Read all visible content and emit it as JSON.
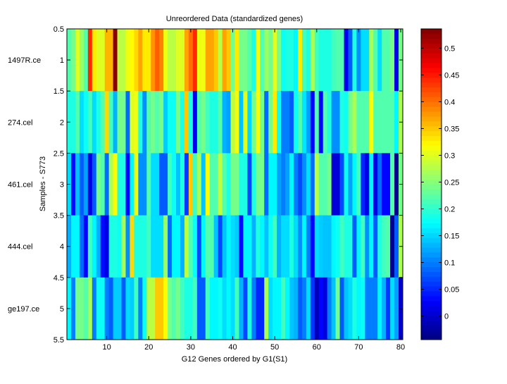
{
  "chart_data": {
    "type": "heatmap",
    "title": "Unreordered Data (standardized genes)",
    "xlabel": "G12 Genes ordered by G1(S1)",
    "ylabel": "Samples - S773",
    "row_labels": [
      "1497R.ce",
      "274.cel",
      "461.cel",
      "444.cel",
      "ge197.ce"
    ],
    "xlim": [
      0.5,
      80.5
    ],
    "ylim": [
      0.5,
      5.5
    ],
    "x_ticks": [
      10,
      20,
      30,
      40,
      50,
      60,
      70,
      80
    ],
    "y_ticks": [
      "0.5",
      "1",
      "1.5",
      "2",
      "2.5",
      "3",
      "3.5",
      "4",
      "4.5",
      "5",
      "5.5"
    ],
    "colormap": "jet",
    "clim": [
      -0.044,
      0.536
    ],
    "colorbar_ticks": [
      "0",
      "0.05",
      "0.1",
      "0.15",
      "0.2",
      "0.25",
      "0.3",
      "0.35",
      "0.4",
      "0.45",
      "0.5"
    ],
    "values": [
      [
        0.22,
        0.24,
        0.3,
        0.26,
        0.22,
        0.44,
        0.33,
        0.3,
        0.3,
        0.36,
        0.36,
        0.53,
        0.28,
        0.28,
        0.31,
        0.32,
        0.34,
        0.37,
        0.33,
        0.33,
        0.38,
        0.41,
        0.39,
        0.31,
        0.28,
        0.28,
        0.3,
        0.3,
        0.37,
        0.4,
        0.44,
        0.31,
        0.31,
        0.37,
        0.37,
        0.35,
        0.28,
        0.37,
        0.35,
        0.24,
        0.33,
        0.24,
        0.24,
        0.22,
        0.19,
        0.31,
        0.22,
        0.26,
        0.24,
        0.3,
        0.24,
        0.18,
        0.19,
        0.19,
        0.17,
        0.33,
        0.21,
        0.19,
        0.27,
        0.21,
        0.19,
        0.19,
        0.19,
        0.21,
        0.22,
        0.22,
        0.02,
        0.08,
        0.19,
        0.11,
        0.155,
        0.155,
        0.27,
        0.22,
        0.155,
        0.22,
        0.22,
        0.24,
        0.015,
        0.24
      ],
      [
        0.19,
        0.19,
        0.22,
        0.155,
        0.18,
        0.21,
        0.155,
        0.19,
        0.22,
        0.34,
        0.21,
        0.13,
        0.24,
        0.24,
        0.09,
        0.3,
        0.31,
        0.19,
        0.11,
        0.22,
        0.24,
        0.22,
        0.24,
        0.145,
        0.18,
        0.18,
        0.24,
        0.19,
        0.35,
        0.19,
        0.02,
        0.22,
        0.24,
        0.21,
        0.19,
        0.19,
        0.22,
        0.13,
        0.12,
        0.28,
        0.31,
        0.14,
        0.3,
        0.15,
        0.24,
        0.31,
        0.24,
        0.09,
        0.24,
        0.33,
        0.18,
        0.1,
        0.1,
        0.08,
        0.18,
        0.22,
        0.16,
        0.12,
        0.03,
        0.22,
        0.03,
        0.22,
        0.19,
        0.11,
        0.11,
        0.19,
        0.18,
        0.24,
        0.27,
        0.22,
        0.22,
        0.22,
        0.32,
        0.22,
        0.22,
        0.22,
        0.22,
        0.22,
        0.17,
        0.27
      ],
      [
        0.155,
        0.035,
        0.14,
        0.08,
        0.12,
        0.015,
        0.08,
        0.24,
        0.22,
        0.09,
        0.27,
        0.32,
        0.19,
        0.19,
        0.03,
        0.17,
        0.31,
        0.11,
        0.11,
        0.22,
        0.155,
        0.155,
        0.08,
        0.08,
        0.21,
        0.18,
        0.14,
        0.19,
        0.06,
        0.35,
        0.21,
        0.27,
        0.14,
        0.32,
        0.22,
        0.22,
        0.28,
        0.22,
        0.19,
        0.24,
        0.24,
        0.19,
        0.19,
        0.07,
        0.19,
        0.24,
        0.24,
        0.09,
        0.17,
        0.17,
        0.12,
        0.1,
        0.12,
        0.17,
        0.1,
        0.07,
        0.11,
        0.155,
        0.09,
        0.28,
        0.22,
        0.22,
        0.24,
        0.005,
        0.005,
        0.07,
        0.18,
        0.12,
        0.17,
        0.21,
        0.05,
        0.015,
        0.17,
        0.015,
        0.09,
        0.03,
        0.03,
        0.22,
        -0.035,
        0.24
      ],
      [
        0.13,
        0.17,
        0.17,
        0.09,
        0.03,
        0.21,
        0.17,
        0.13,
        0.035,
        0.015,
        0.19,
        0.19,
        0.18,
        0.27,
        0.11,
        0.34,
        0.19,
        0.19,
        0.19,
        0.21,
        0.155,
        0.155,
        0.155,
        0.26,
        0.09,
        0.17,
        0.17,
        0.13,
        0.28,
        0.22,
        0.18,
        0.07,
        0.17,
        0.22,
        0.22,
        0.14,
        0.07,
        0.14,
        0.17,
        0.155,
        0.145,
        0.035,
        0.17,
        0.17,
        0.13,
        0.19,
        0.17,
        0.14,
        0.18,
        0.21,
        0.13,
        0.155,
        0.155,
        0.19,
        0.155,
        0.11,
        0.17,
        0.1,
        0.03,
        0.155,
        0.145,
        0.14,
        0.14,
        0.17,
        0.18,
        0.21,
        0.19,
        0.19,
        0.08,
        0.17,
        0.21,
        0.11,
        0.17,
        0.08,
        0.19,
        0.21,
        0.22,
        -0.035,
        0.08,
        0.27
      ],
      [
        0.17,
        0.1,
        0.24,
        0.24,
        0.22,
        0.27,
        0.1,
        0.18,
        0.18,
        0.1,
        0.08,
        0.145,
        0.145,
        0.08,
        0.155,
        0.145,
        0.21,
        0.1,
        0.18,
        0.28,
        0.28,
        0.35,
        0.35,
        0.32,
        0.24,
        0.22,
        0.24,
        0.21,
        0.19,
        0.19,
        0.21,
        0.08,
        0.08,
        0.21,
        0.17,
        0.17,
        0.18,
        0.155,
        0.17,
        0.155,
        0.21,
        0.13,
        0.07,
        0.19,
        0.1,
        0.05,
        0.05,
        0.27,
        0.155,
        0.17,
        0.17,
        0.21,
        0.17,
        0.14,
        0.13,
        0.08,
        0.1,
        0.155,
        0.06,
        -0.01,
        0.03,
        0.01,
        0.1,
        0.14,
        0.24,
        0.08,
        0.14,
        0.155,
        0.19,
        0.17,
        0.18,
        0.1,
        0.1,
        0.1,
        0.17,
        0.13,
        0.06,
        0.155,
        0.12,
        0.0
      ]
    ]
  }
}
